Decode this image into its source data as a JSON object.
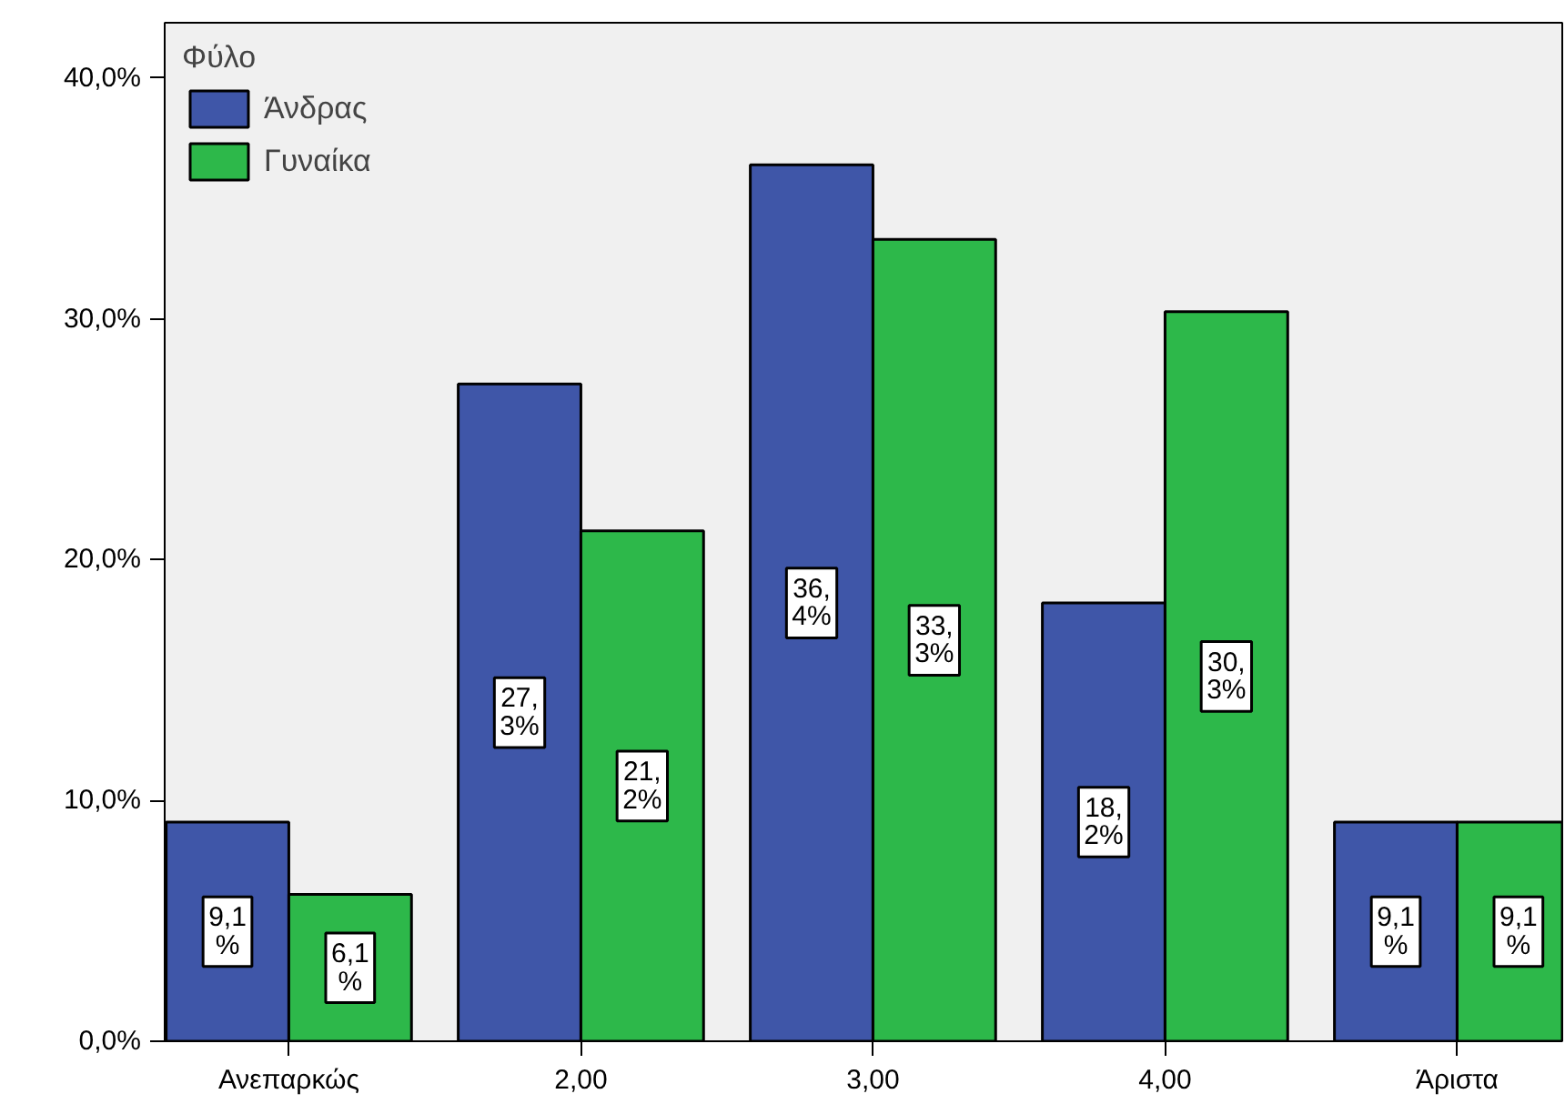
{
  "chart_data": {
    "type": "bar",
    "categories": [
      "Ανεπαρκώς",
      "2,00",
      "3,00",
      "4,00",
      "Άριστα"
    ],
    "series": [
      {
        "name": "Άνδρας",
        "color": "#3f56a8",
        "values": [
          9.1,
          27.3,
          36.4,
          18.2,
          9.1
        ],
        "value_labels": [
          "9,1%",
          "27,3%",
          "36,4%",
          "18,2%",
          "9,1%"
        ]
      },
      {
        "name": "Γυναίκα",
        "color": "#2db84a",
        "values": [
          6.1,
          21.2,
          33.3,
          30.3,
          9.1
        ],
        "value_labels": [
          "6,1%",
          "21,2%",
          "33,3%",
          "30,3%",
          "9,1%"
        ]
      }
    ],
    "legend_title": "Φύλο",
    "legend": "top left",
    "grid": false,
    "ylim": [
      0,
      42.3
    ],
    "yticks": [
      {
        "value": 0,
        "label": "0,0%"
      },
      {
        "value": 10,
        "label": "10,0%"
      },
      {
        "value": 20,
        "label": "20,0%"
      },
      {
        "value": 30,
        "label": "30,0%"
      },
      {
        "value": 40,
        "label": "40,0%"
      }
    ]
  }
}
